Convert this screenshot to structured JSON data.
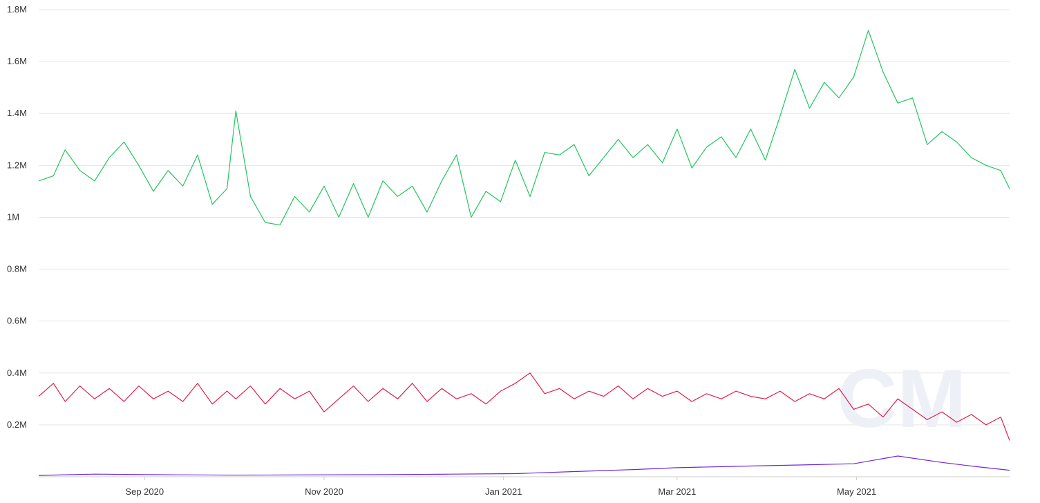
{
  "chart_data": {
    "type": "line",
    "title": "",
    "xlabel": "",
    "ylabel": "",
    "ylim": [
      0,
      1800000
    ],
    "y_ticks": [
      {
        "value": 200000,
        "label": "0.2M"
      },
      {
        "value": 400000,
        "label": "0.4M"
      },
      {
        "value": 600000,
        "label": "0.6M"
      },
      {
        "value": 800000,
        "label": "0.8M"
      },
      {
        "value": 1000000,
        "label": "1M"
      },
      {
        "value": 1200000,
        "label": "1.2M"
      },
      {
        "value": 1400000,
        "label": "1.4M"
      },
      {
        "value": 1600000,
        "label": "1.6M"
      },
      {
        "value": 1800000,
        "label": "1.8M"
      }
    ],
    "x_range": [
      "2020-07-27",
      "2021-06-22"
    ],
    "x_ticks": [
      {
        "date": "2020-09-01",
        "label": "Sep 2020"
      },
      {
        "date": "2020-11-01",
        "label": "Nov 2020"
      },
      {
        "date": "2021-01-01",
        "label": "Jan 2021"
      },
      {
        "date": "2021-03-01",
        "label": "Mar 2021"
      },
      {
        "date": "2021-05-01",
        "label": "May 2021"
      }
    ],
    "grid": true,
    "legend": "none",
    "watermark": "CM",
    "series": [
      {
        "color": "#22c55e",
        "x": [
          "2020-07-27",
          "2020-08-01",
          "2020-08-05",
          "2020-08-10",
          "2020-08-15",
          "2020-08-20",
          "2020-08-25",
          "2020-08-30",
          "2020-09-04",
          "2020-09-09",
          "2020-09-14",
          "2020-09-19",
          "2020-09-24",
          "2020-09-29",
          "2020-10-02",
          "2020-10-07",
          "2020-10-12",
          "2020-10-17",
          "2020-10-22",
          "2020-10-27",
          "2020-11-01",
          "2020-11-06",
          "2020-11-11",
          "2020-11-16",
          "2020-11-21",
          "2020-11-26",
          "2020-12-01",
          "2020-12-06",
          "2020-12-11",
          "2020-12-16",
          "2020-12-21",
          "2020-12-26",
          "2020-12-31",
          "2021-01-05",
          "2021-01-10",
          "2021-01-15",
          "2021-01-20",
          "2021-01-25",
          "2021-01-30",
          "2021-02-04",
          "2021-02-09",
          "2021-02-14",
          "2021-02-19",
          "2021-02-24",
          "2021-03-01",
          "2021-03-06",
          "2021-03-11",
          "2021-03-16",
          "2021-03-21",
          "2021-03-26",
          "2021-03-31",
          "2021-04-05",
          "2021-04-10",
          "2021-04-15",
          "2021-04-20",
          "2021-04-25",
          "2021-04-30",
          "2021-05-05",
          "2021-05-10",
          "2021-05-15",
          "2021-05-20",
          "2021-05-25",
          "2021-05-30",
          "2021-06-04",
          "2021-06-09",
          "2021-06-14",
          "2021-06-19",
          "2021-06-22"
        ],
        "values": [
          1140000,
          1160000,
          1260000,
          1180000,
          1140000,
          1230000,
          1290000,
          1200000,
          1100000,
          1180000,
          1120000,
          1240000,
          1050000,
          1110000,
          1410000,
          1080000,
          980000,
          970000,
          1080000,
          1020000,
          1120000,
          1000000,
          1130000,
          1000000,
          1140000,
          1080000,
          1120000,
          1020000,
          1140000,
          1240000,
          1000000,
          1100000,
          1060000,
          1220000,
          1080000,
          1250000,
          1240000,
          1280000,
          1160000,
          1230000,
          1300000,
          1230000,
          1280000,
          1210000,
          1340000,
          1190000,
          1270000,
          1310000,
          1230000,
          1340000,
          1220000,
          1390000,
          1570000,
          1420000,
          1520000,
          1460000,
          1540000,
          1720000,
          1560000,
          1440000,
          1460000,
          1280000,
          1330000,
          1290000,
          1230000,
          1200000,
          1180000,
          1110000
        ]
      },
      {
        "color": "#e11d48",
        "x": [
          "2020-07-27",
          "2020-08-01",
          "2020-08-05",
          "2020-08-10",
          "2020-08-15",
          "2020-08-20",
          "2020-08-25",
          "2020-08-30",
          "2020-09-04",
          "2020-09-09",
          "2020-09-14",
          "2020-09-19",
          "2020-09-24",
          "2020-09-29",
          "2020-10-02",
          "2020-10-07",
          "2020-10-12",
          "2020-10-17",
          "2020-10-22",
          "2020-10-27",
          "2020-11-01",
          "2020-11-06",
          "2020-11-11",
          "2020-11-16",
          "2020-11-21",
          "2020-11-26",
          "2020-12-01",
          "2020-12-06",
          "2020-12-11",
          "2020-12-16",
          "2020-12-21",
          "2020-12-26",
          "2020-12-31",
          "2021-01-05",
          "2021-01-10",
          "2021-01-15",
          "2021-01-20",
          "2021-01-25",
          "2021-01-30",
          "2021-02-04",
          "2021-02-09",
          "2021-02-14",
          "2021-02-19",
          "2021-02-24",
          "2021-03-01",
          "2021-03-06",
          "2021-03-11",
          "2021-03-16",
          "2021-03-21",
          "2021-03-26",
          "2021-03-31",
          "2021-04-05",
          "2021-04-10",
          "2021-04-15",
          "2021-04-20",
          "2021-04-25",
          "2021-04-30",
          "2021-05-05",
          "2021-05-10",
          "2021-05-15",
          "2021-05-20",
          "2021-05-25",
          "2021-05-30",
          "2021-06-04",
          "2021-06-09",
          "2021-06-14",
          "2021-06-19",
          "2021-06-22"
        ],
        "values": [
          310000,
          360000,
          290000,
          350000,
          300000,
          340000,
          290000,
          350000,
          300000,
          330000,
          290000,
          360000,
          280000,
          330000,
          300000,
          350000,
          280000,
          340000,
          300000,
          330000,
          250000,
          300000,
          350000,
          290000,
          340000,
          300000,
          360000,
          290000,
          340000,
          300000,
          320000,
          280000,
          330000,
          360000,
          400000,
          320000,
          340000,
          300000,
          330000,
          310000,
          350000,
          300000,
          340000,
          310000,
          330000,
          290000,
          320000,
          300000,
          330000,
          310000,
          300000,
          330000,
          290000,
          320000,
          300000,
          340000,
          260000,
          280000,
          230000,
          300000,
          260000,
          220000,
          250000,
          210000,
          240000,
          200000,
          230000,
          140000
        ]
      },
      {
        "color": "#6d28d9",
        "x": [
          "2020-07-27",
          "2020-08-15",
          "2020-09-05",
          "2020-10-01",
          "2020-10-25",
          "2020-11-20",
          "2020-12-15",
          "2021-01-05",
          "2021-01-25",
          "2021-02-15",
          "2021-03-01",
          "2021-03-20",
          "2021-04-10",
          "2021-04-30",
          "2021-05-15",
          "2021-05-30",
          "2021-06-10",
          "2021-06-22"
        ],
        "values": [
          5000,
          10000,
          8000,
          6000,
          7000,
          8000,
          10000,
          12000,
          20000,
          28000,
          35000,
          40000,
          45000,
          50000,
          80000,
          55000,
          40000,
          25000
        ]
      }
    ]
  }
}
